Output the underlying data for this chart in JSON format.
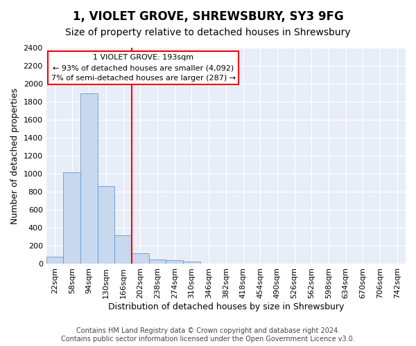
{
  "title": "1, VIOLET GROVE, SHREWSBURY, SY3 9FG",
  "subtitle": "Size of property relative to detached houses in Shrewsbury",
  "xlabel": "Distribution of detached houses by size in Shrewsbury",
  "ylabel": "Number of detached properties",
  "footer_line1": "Contains HM Land Registry data © Crown copyright and database right 2024.",
  "footer_line2": "Contains public sector information licensed under the Open Government Licence v3.0.",
  "bin_labels": [
    "22sqm",
    "58sqm",
    "94sqm",
    "130sqm",
    "166sqm",
    "202sqm",
    "238sqm",
    "274sqm",
    "310sqm",
    "346sqm",
    "382sqm",
    "418sqm",
    "454sqm",
    "490sqm",
    "526sqm",
    "562sqm",
    "598sqm",
    "634sqm",
    "670sqm",
    "706sqm",
    "742sqm"
  ],
  "bar_values": [
    80,
    1020,
    1890,
    860,
    320,
    120,
    50,
    40,
    30,
    0,
    0,
    0,
    0,
    0,
    0,
    0,
    0,
    0,
    0,
    0,
    0
  ],
  "bar_color": "#c8d8ee",
  "bar_edge_color": "#6699cc",
  "vline_x": 4.5,
  "vline_color": "red",
  "vline_lw": 1.5,
  "annotation_line1": "1 VIOLET GROVE: 193sqm",
  "annotation_line2": "← 93% of detached houses are smaller (4,092)",
  "annotation_line3": "7% of semi-detached houses are larger (287) →",
  "annotation_box_color": "red",
  "ylim": [
    0,
    2400
  ],
  "yticks": [
    0,
    200,
    400,
    600,
    800,
    1000,
    1200,
    1400,
    1600,
    1800,
    2000,
    2200,
    2400
  ],
  "bg_color": "#e8eef8",
  "grid_color": "white",
  "title_fontsize": 12,
  "subtitle_fontsize": 10,
  "xlabel_fontsize": 9,
  "ylabel_fontsize": 9,
  "tick_fontsize": 8,
  "footer_fontsize": 7
}
